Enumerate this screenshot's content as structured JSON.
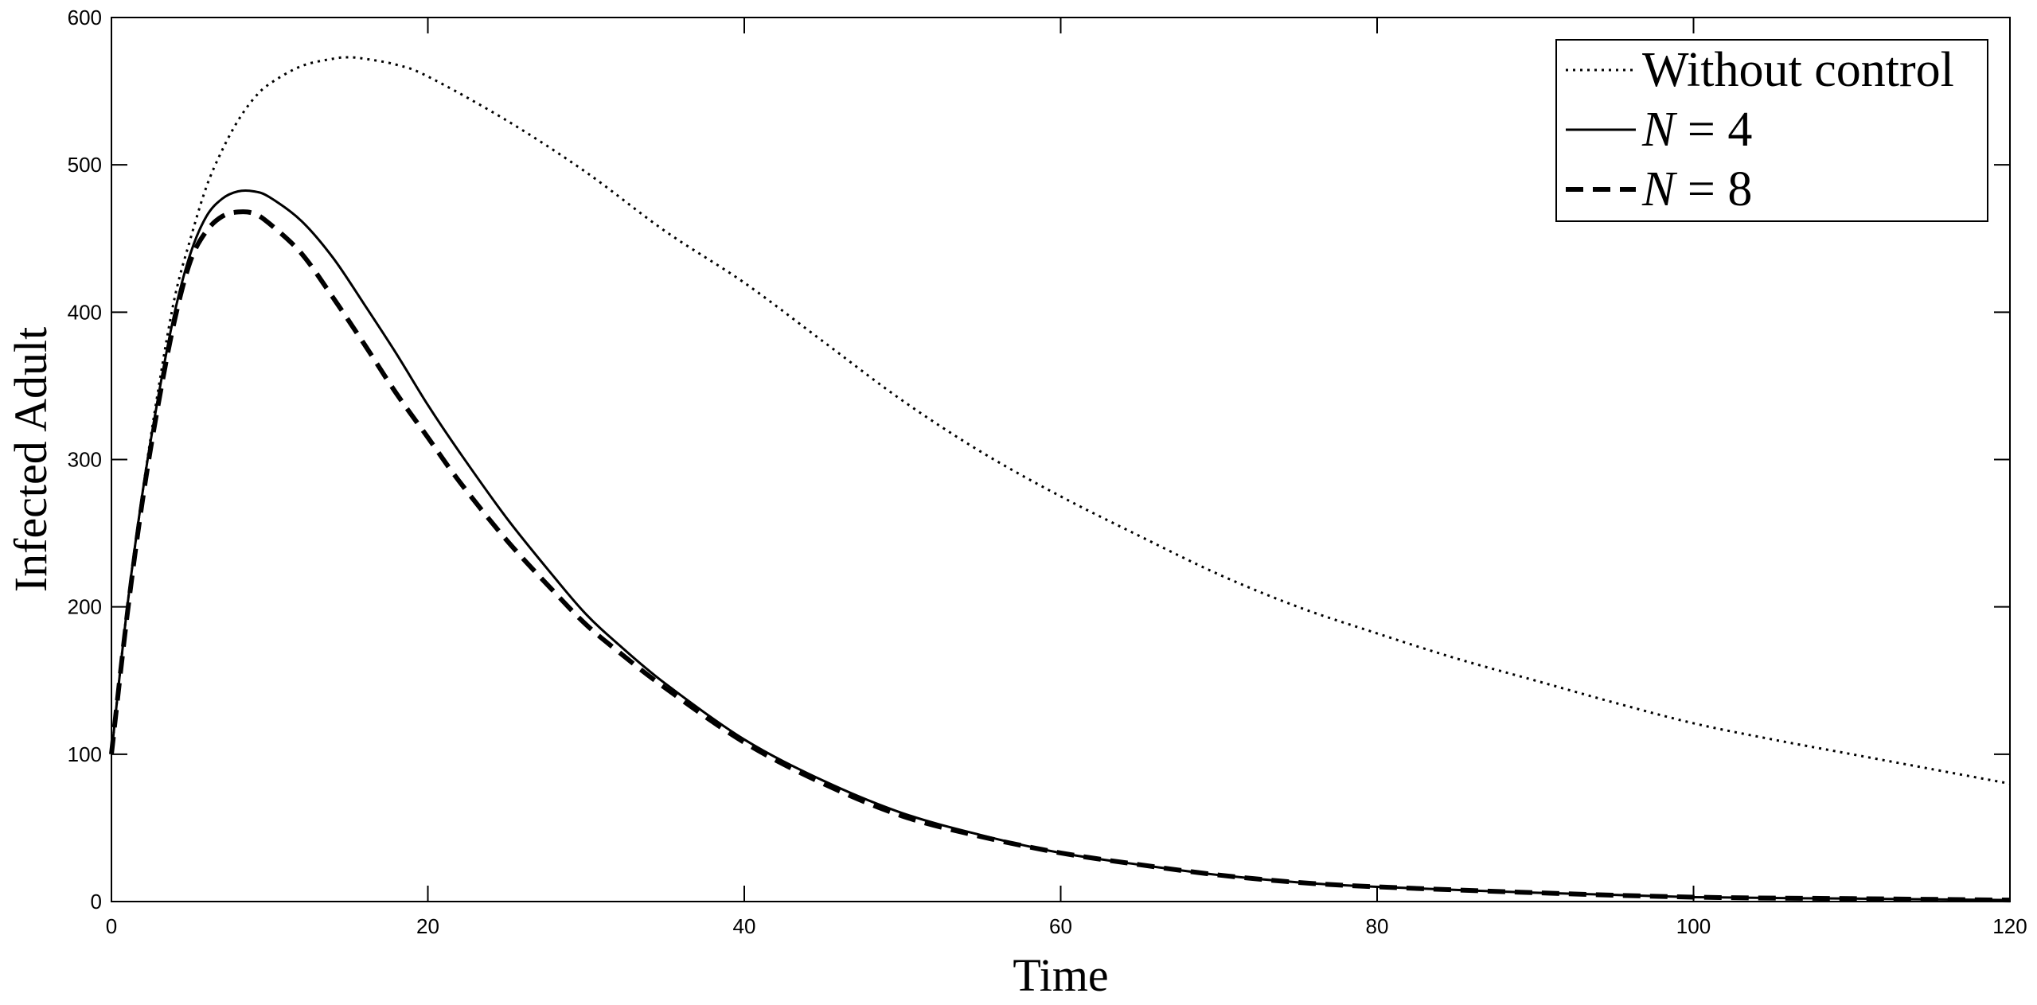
{
  "chart_data": {
    "type": "line",
    "xlabel": "Time",
    "ylabel": "Infected Adult",
    "xlim": [
      0,
      120
    ],
    "ylim": [
      0,
      600
    ],
    "xticks": [
      0,
      20,
      40,
      60,
      80,
      100,
      120
    ],
    "yticks": [
      0,
      100,
      200,
      300,
      400,
      500,
      600
    ],
    "grid": false,
    "legend_position": "top-right",
    "series": [
      {
        "name": "Without control",
        "style": "dotted",
        "color": "#000000",
        "x": [
          0,
          1,
          2,
          3,
          4,
          5,
          6,
          7,
          8,
          9,
          10,
          12,
          14,
          15,
          16,
          18,
          20,
          25,
          30,
          35,
          40,
          45,
          50,
          55,
          60,
          65,
          70,
          75,
          80,
          85,
          90,
          95,
          100,
          105,
          110,
          115,
          120
        ],
        "y": [
          100,
          200,
          280,
          350,
          410,
          450,
          485,
          510,
          530,
          545,
          555,
          567,
          572,
          573,
          572,
          568,
          560,
          530,
          495,
          455,
          420,
          380,
          340,
          305,
          275,
          248,
          222,
          200,
          182,
          165,
          150,
          135,
          121,
          110,
          100,
          90,
          80
        ]
      },
      {
        "name": "N = 4",
        "legend_var": "N",
        "legend_value": "= 4",
        "style": "solid",
        "color": "#000000",
        "x": [
          0,
          1,
          2,
          3,
          4,
          5,
          6,
          7,
          8,
          9,
          10,
          12,
          14,
          16,
          18,
          20,
          22,
          25,
          28,
          30,
          32,
          35,
          40,
          45,
          50,
          55,
          60,
          65,
          70,
          75,
          80,
          90,
          100,
          110,
          120
        ],
        "y": [
          100,
          200,
          280,
          345,
          400,
          440,
          465,
          477,
          482,
          482,
          478,
          462,
          437,
          405,
          372,
          337,
          305,
          260,
          220,
          195,
          175,
          148,
          110,
          82,
          60,
          45,
          33,
          25,
          18,
          13,
          10,
          6,
          3,
          2,
          1
        ]
      },
      {
        "name": "N = 8",
        "legend_var": "N",
        "legend_value": "= 8",
        "style": "dashed",
        "color": "#000000",
        "x": [
          0,
          1,
          2,
          3,
          4,
          5,
          6,
          7,
          8,
          9,
          10,
          12,
          14,
          16,
          18,
          20,
          22,
          25,
          28,
          30,
          32,
          35,
          40,
          45,
          50,
          55,
          60,
          65,
          70,
          75,
          80,
          90,
          100,
          110,
          120
        ],
        "y": [
          100,
          195,
          275,
          340,
          395,
          435,
          455,
          465,
          468,
          467,
          460,
          440,
          410,
          378,
          345,
          315,
          285,
          245,
          210,
          188,
          170,
          145,
          108,
          80,
          58,
          44,
          33,
          25,
          18,
          13,
          10,
          6,
          3,
          2,
          1
        ]
      }
    ]
  }
}
